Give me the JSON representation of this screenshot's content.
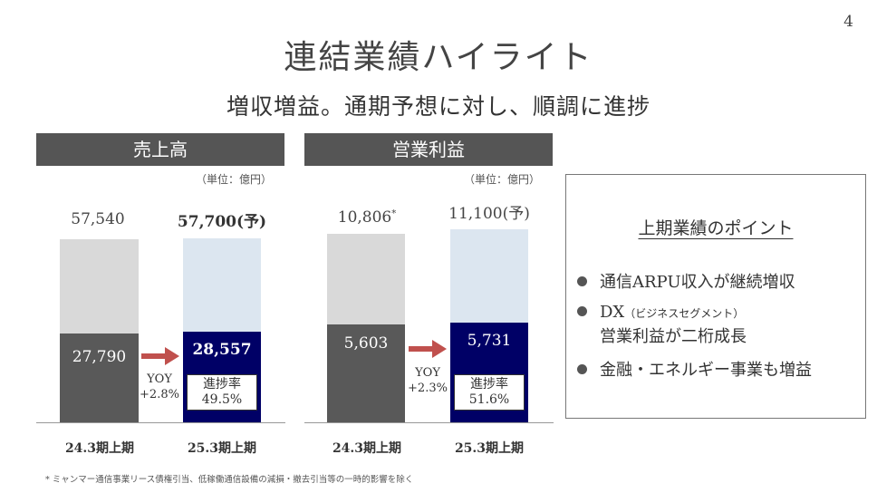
{
  "page_number": "4",
  "title": "連結業績ハイライト",
  "subtitle": "増収増益。通期予想に対し、順調に進捗",
  "unit_label": "（単位：億円）",
  "sales": {
    "header": "売上高",
    "prior": {
      "total": "57,540",
      "h1": "27,790",
      "label": "24.3期上期",
      "h1_ratio": 0.483
    },
    "current": {
      "total": "57,700(予)",
      "h1": "28,557",
      "label": "25.3期上期",
      "h1_ratio": 0.495
    },
    "yoy_label": "YOY",
    "yoy_value": "+2.8%",
    "progress_label": "進捗率",
    "progress_value": "49.5%",
    "colors": {
      "prior_bg": "#d9d9d9",
      "prior_fill": "#595959",
      "current_bg": "#dce6f0",
      "current_fill": "#000066",
      "arrow": "#c0504d"
    }
  },
  "op_income": {
    "header": "営業利益",
    "prior": {
      "total": "10,806",
      "total_note": "*",
      "h1": "5,603",
      "label": "24.3期上期",
      "h1_ratio": 0.519
    },
    "current": {
      "total": "11,100(予)",
      "h1": "5,731",
      "label": "25.3期上期",
      "h1_ratio": 0.516
    },
    "yoy_label": "YOY",
    "yoy_value": "+2.3%",
    "progress_label": "進捗率",
    "progress_value": "51.6%"
  },
  "points": {
    "title": "上期業績のポイント",
    "items": [
      {
        "text": "通信ARPU収入が継続増収"
      },
      {
        "text": "DX",
        "note": "（ビジネスセグメント）",
        "line2": "営業利益が二桁成長"
      },
      {
        "text": "金融・エネルギー事業も増益"
      }
    ]
  },
  "footnote": "* ミャンマー通信事業リース債権引当、低稼働通信設備の減損・撤去引当等の一時的影響を除く"
}
